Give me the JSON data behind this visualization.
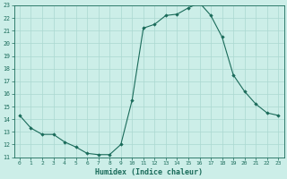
{
  "x": [
    0,
    1,
    2,
    3,
    4,
    5,
    6,
    7,
    8,
    9,
    10,
    11,
    12,
    13,
    14,
    15,
    16,
    17,
    18,
    19,
    20,
    21,
    22,
    23
  ],
  "y": [
    14.3,
    13.3,
    12.8,
    12.8,
    12.2,
    11.8,
    11.3,
    11.2,
    11.2,
    12.0,
    15.5,
    21.2,
    21.5,
    22.2,
    22.3,
    22.8,
    23.2,
    22.2,
    20.5,
    17.5,
    16.2,
    15.2,
    14.5,
    14.3
  ],
  "line_color": "#1a6b5a",
  "marker_color": "#1a6b5a",
  "bg_color": "#cceee8",
  "grid_color": "#aad8d0",
  "xlabel": "Humidex (Indice chaleur)",
  "ylim": [
    11,
    23
  ],
  "xlim": [
    -0.5,
    23.5
  ],
  "yticks": [
    11,
    12,
    13,
    14,
    15,
    16,
    17,
    18,
    19,
    20,
    21,
    22,
    23
  ],
  "xticks": [
    0,
    1,
    2,
    3,
    4,
    5,
    6,
    7,
    8,
    9,
    10,
    11,
    12,
    13,
    14,
    15,
    16,
    17,
    18,
    19,
    20,
    21,
    22,
    23
  ],
  "xtick_labels": [
    "0",
    "1",
    "2",
    "3",
    "4",
    "5",
    "6",
    "7",
    "8",
    "9",
    "10",
    "11",
    "12",
    "13",
    "14",
    "15",
    "16",
    "17",
    "18",
    "19",
    "20",
    "21",
    "22",
    "23"
  ],
  "ytick_labels": [
    "11",
    "12",
    "13",
    "14",
    "15",
    "16",
    "17",
    "18",
    "19",
    "20",
    "21",
    "22",
    "23"
  ]
}
